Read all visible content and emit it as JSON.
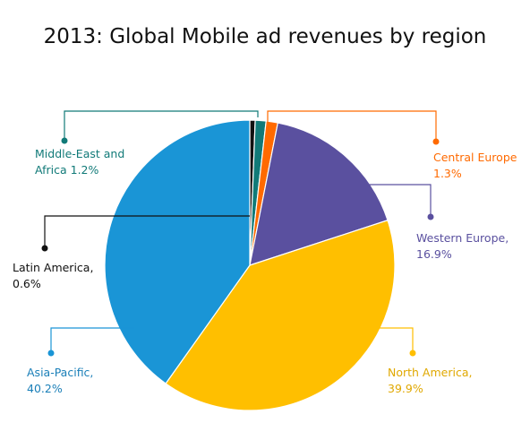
{
  "chart_data": {
    "type": "pie",
    "title": "2013: Global Mobile ad revenues by region",
    "slices": [
      {
        "name": "Latin America",
        "value": 0.6,
        "line1": "Latin America,",
        "line2": "0.6%",
        "color": "#111111"
      },
      {
        "name": "Middle-East and Africa",
        "value": 1.2,
        "line1": "Middle-East and",
        "line2": "Africa 1.2%",
        "color": "#117a78"
      },
      {
        "name": "Central Europe",
        "value": 1.3,
        "line1": "Central Europe",
        "line2": "1.3%",
        "color": "#ff6a00"
      },
      {
        "name": "Western Europe",
        "value": 16.9,
        "line1": "Western Europe,",
        "line2": "16.9%",
        "color": "#5a509f"
      },
      {
        "name": "North America",
        "value": 39.9,
        "line1": "North America,",
        "line2": "39.9%",
        "color": "#ffbf00"
      },
      {
        "name": "Asia-Pacific",
        "value": 40.2,
        "line1": "Asia-Pacific,",
        "line2": "40.2%",
        "color": "#1a95d6"
      }
    ]
  }
}
